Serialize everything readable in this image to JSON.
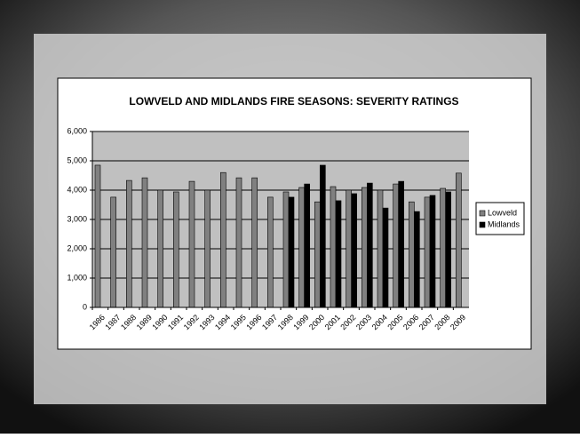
{
  "chart_data": {
    "type": "bar",
    "title": "LOWVELD AND MIDLANDS FIRE SEASONS: SEVERITY RATINGS",
    "categories": [
      "1986",
      "1987",
      "1988",
      "1989",
      "1990",
      "1991",
      "1992",
      "1993",
      "1994",
      "1995",
      "1996",
      "1997",
      "1998",
      "1999",
      "2000",
      "2001",
      "2002",
      "2003",
      "2004",
      "2005",
      "2006",
      "2007",
      "2008",
      "2009"
    ],
    "series": [
      {
        "name": "Lowveld",
        "color": "#808080",
        "values": [
          4850,
          3760,
          4330,
          4420,
          4000,
          3940,
          4300,
          4000,
          4600,
          4420,
          4420,
          3760,
          3940,
          4090,
          3600,
          4120,
          4000,
          4090,
          4000,
          4210,
          3600,
          3760,
          4060,
          4580
        ]
      },
      {
        "name": "Midlands",
        "color": "#000000",
        "values": [
          null,
          null,
          null,
          null,
          null,
          null,
          null,
          null,
          null,
          null,
          null,
          null,
          3760,
          4210,
          4850,
          3640,
          3880,
          4240,
          3390,
          4300,
          3270,
          3820,
          3940,
          null
        ]
      }
    ],
    "ylim": [
      0,
      6000
    ],
    "yticks": [
      {
        "value": 0,
        "label": "0"
      },
      {
        "value": 1000,
        "label": "1,000"
      },
      {
        "value": 2000,
        "label": "2,000"
      },
      {
        "value": 3000,
        "label": "3,000"
      },
      {
        "value": 4000,
        "label": "4,000"
      },
      {
        "value": 5000,
        "label": "5,000"
      },
      {
        "value": 6000,
        "label": "6,000"
      }
    ],
    "grid": true,
    "legend": "right"
  }
}
